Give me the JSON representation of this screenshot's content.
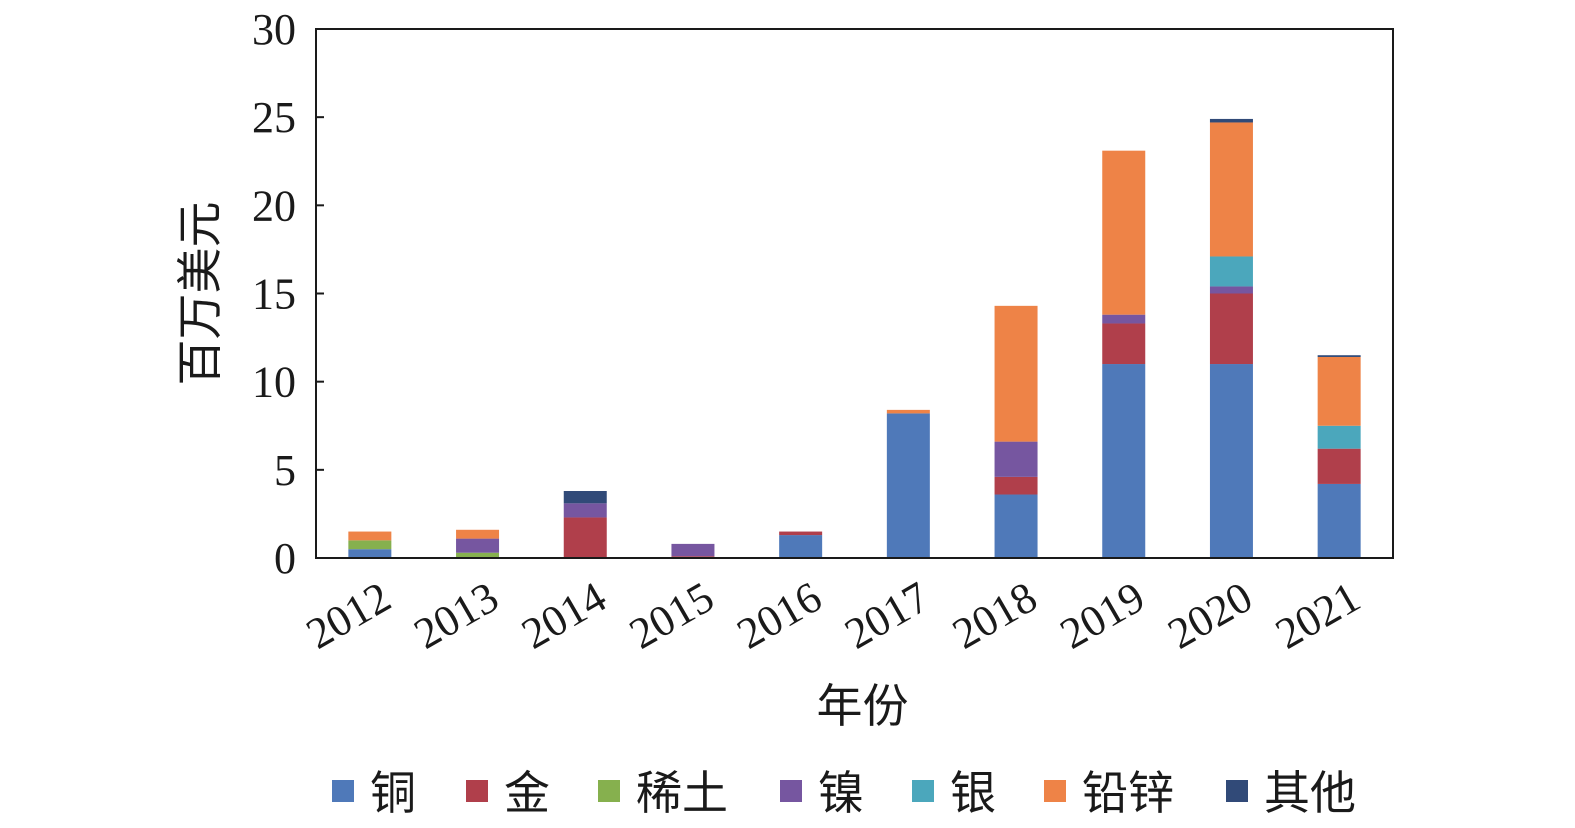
{
  "chart_data": {
    "type": "bar",
    "stacked": true,
    "title": "",
    "xlabel": "年份",
    "ylabel": "百万美元",
    "ylim": [
      0,
      30
    ],
    "yticks": [
      "0",
      "5",
      "10",
      "15",
      "20",
      "25",
      "30"
    ],
    "categories": [
      "2012",
      "2013",
      "2014",
      "2015",
      "2016",
      "2017",
      "2018",
      "2019",
      "2020",
      "2021"
    ],
    "grid": false,
    "legend_position": "bottom",
    "series": [
      {
        "name": "铜",
        "color": "#4f79b9",
        "values": [
          0.5,
          0.0,
          0.0,
          0.0,
          1.3,
          8.2,
          3.6,
          11.0,
          11.0,
          4.2
        ]
      },
      {
        "name": "金",
        "color": "#b03f4b",
        "values": [
          0.0,
          0.0,
          2.3,
          0.1,
          0.2,
          0.0,
          1.0,
          2.3,
          4.0,
          2.0
        ]
      },
      {
        "name": "稀土",
        "color": "#86b04e",
        "values": [
          0.5,
          0.3,
          0.0,
          0.0,
          0.0,
          0.0,
          0.0,
          0.0,
          0.0,
          0.0
        ]
      },
      {
        "name": "镍",
        "color": "#7656a0",
        "values": [
          0.0,
          0.8,
          0.8,
          0.7,
          0.0,
          0.0,
          2.0,
          0.5,
          0.4,
          0.0
        ]
      },
      {
        "name": "银",
        "color": "#4ba7bc",
        "values": [
          0.0,
          0.0,
          0.0,
          0.0,
          0.0,
          0.0,
          0.0,
          0.0,
          1.7,
          1.3
        ]
      },
      {
        "name": "铅锌",
        "color": "#ee8347",
        "values": [
          0.5,
          0.5,
          0.0,
          0.0,
          0.0,
          0.2,
          7.7,
          9.3,
          7.6,
          3.9
        ]
      },
      {
        "name": "其他",
        "color": "#314a78",
        "values": [
          0.0,
          0.0,
          0.7,
          0.0,
          0.0,
          0.0,
          0.0,
          0.0,
          0.2,
          0.1
        ]
      }
    ]
  }
}
